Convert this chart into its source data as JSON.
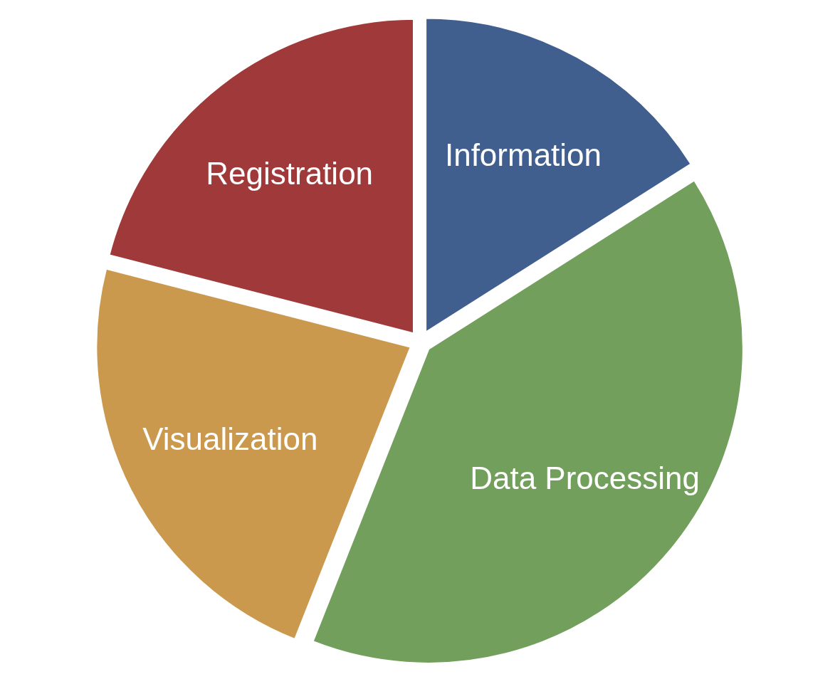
{
  "chart_data": {
    "type": "pie",
    "categories": [
      "Information",
      "Data Processing",
      "Visualization",
      "Registration"
    ],
    "values": [
      16,
      40,
      23,
      21
    ],
    "colors": [
      "#405f8f",
      "#739f5c",
      "#cb994e",
      "#a03a3a"
    ]
  }
}
